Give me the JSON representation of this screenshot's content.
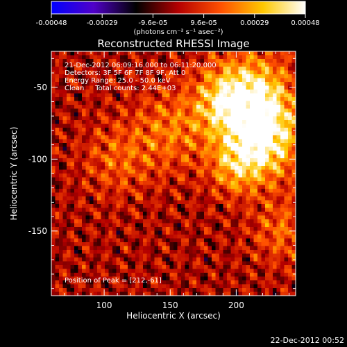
{
  "colorbar": {
    "tick_labels": [
      "-0.00048",
      "-0.00029",
      "-9.6e-05",
      "9.6e-05",
      "0.00029",
      "0.00048"
    ],
    "range": [
      -0.00048,
      0.00048
    ],
    "units_label": "(photons cm⁻² s⁻¹ asec⁻²)",
    "colors": [
      "#0000ff",
      "#5000c8",
      "#000000",
      "#b40000",
      "#ff5000",
      "#ffc800",
      "#ffffff"
    ]
  },
  "chart_data": {
    "type": "heatmap",
    "title": "Reconstructed RHESSI Image",
    "xlabel": "Heliocentric X (arcsec)",
    "ylabel": "Heliocentric Y (arcsec)",
    "xlim": [
      60,
      245
    ],
    "ylim": [
      -195,
      -25
    ],
    "x_ticks": [
      100,
      150,
      200
    ],
    "y_ticks": [
      -50,
      -100,
      -150
    ],
    "annotations": [
      "21-Dec-2012 06:09:16.000 to 06:11:20.000",
      "Detectors: 3F 5F 6F 7F 8F 9F, Att 0",
      "Energy Range: 25.0 - 50.0 keV",
      "Clean     Total counts: 2.44E+03"
    ],
    "peak_label": "Position of Peak = [212,-61]",
    "peak_position": [
      212,
      -61
    ]
  },
  "footer": {
    "timestamp": "22-Dec-2012 00:52"
  }
}
